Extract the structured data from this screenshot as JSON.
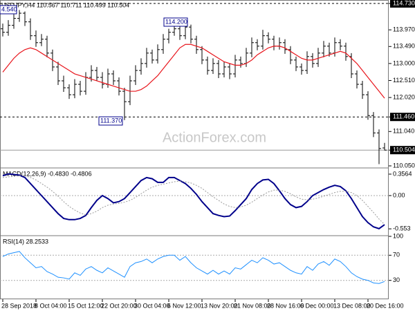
{
  "chart_data": [
    {
      "type": "ohlc",
      "title": "USDJPY,H4 110.567 110.711 110.499 110.504",
      "watermark": "ActionForex.com",
      "categories": [
        "28 Sep 2018",
        null,
        null,
        null,
        null,
        null,
        "8 Oct 04:00",
        null,
        null,
        null,
        null,
        null,
        "15 Oct 12:00",
        null,
        null,
        null,
        null,
        null,
        "22 Oct 20:00",
        null,
        null,
        null,
        null,
        null,
        "30 Oct 04:00",
        null,
        null,
        null,
        null,
        null,
        "6 Nov 12:00",
        null,
        null,
        null,
        null,
        null,
        "13 Nov 20:00",
        null,
        null,
        null,
        null,
        null,
        "21 Nov 08:00",
        null,
        null,
        null,
        null,
        null,
        "28 Nov 16:00",
        null,
        null,
        null,
        null,
        null,
        "6 Dec 00:00",
        null,
        null,
        null,
        null,
        null,
        "13 Dec 08:00",
        null,
        null,
        null,
        null,
        null,
        "20 Dec 16:00",
        null,
        null,
        null
      ],
      "open": [
        114.0,
        113.9,
        114.1,
        114.3,
        114.45,
        114.2,
        113.8,
        113.6,
        113.7,
        113.3,
        112.9,
        112.5,
        112.3,
        112.1,
        112.4,
        112.2,
        112.6,
        112.8,
        112.6,
        112.4,
        112.7,
        112.5,
        112.2,
        111.9,
        112.5,
        112.8,
        113.0,
        113.3,
        113.1,
        113.4,
        113.7,
        113.9,
        114.0,
        113.8,
        114.05,
        113.7,
        113.4,
        113.1,
        112.8,
        113.0,
        112.7,
        112.9,
        112.7,
        113.1,
        113.0,
        113.3,
        113.6,
        113.5,
        113.8,
        113.7,
        113.5,
        113.6,
        113.4,
        113.1,
        112.9,
        112.8,
        113.2,
        113.0,
        113.3,
        113.5,
        113.3,
        113.6,
        113.5,
        113.2,
        112.7,
        112.4,
        112.1,
        111.5,
        111.0,
        110.567
      ],
      "high": [
        114.15,
        114.25,
        114.42,
        114.54,
        114.5,
        114.3,
        113.95,
        113.85,
        113.8,
        113.4,
        113.05,
        112.65,
        112.4,
        112.55,
        112.5,
        112.75,
        112.95,
        112.9,
        112.75,
        112.85,
        112.8,
        112.6,
        112.3,
        112.65,
        112.95,
        113.15,
        113.45,
        113.4,
        113.55,
        113.85,
        114.0,
        114.2,
        114.1,
        114.15,
        114.12,
        113.8,
        113.5,
        113.2,
        113.15,
        113.1,
        113.05,
        113.0,
        113.25,
        113.2,
        113.45,
        113.75,
        113.7,
        113.97,
        113.9,
        113.8,
        113.75,
        113.7,
        113.5,
        113.2,
        113.0,
        113.35,
        113.3,
        113.45,
        113.65,
        113.6,
        113.75,
        113.7,
        113.6,
        113.3,
        112.8,
        112.5,
        112.2,
        111.6,
        111.1,
        110.711
      ],
      "low": [
        113.78,
        113.8,
        114.0,
        114.2,
        114.08,
        113.68,
        113.48,
        113.5,
        113.18,
        112.78,
        112.38,
        112.18,
        111.98,
        112.0,
        112.08,
        112.1,
        112.48,
        112.5,
        112.28,
        112.3,
        112.38,
        112.08,
        111.37,
        111.8,
        112.38,
        112.68,
        112.88,
        113.0,
        113.0,
        113.28,
        113.58,
        113.8,
        113.68,
        113.7,
        113.58,
        113.28,
        112.98,
        112.68,
        112.7,
        112.58,
        112.6,
        112.55,
        112.6,
        112.88,
        112.9,
        113.18,
        113.38,
        113.4,
        113.58,
        113.38,
        113.4,
        113.28,
        112.98,
        112.78,
        112.68,
        112.7,
        112.88,
        112.9,
        113.18,
        113.2,
        113.2,
        113.38,
        113.08,
        112.58,
        112.28,
        111.98,
        111.38,
        110.88,
        110.1,
        110.499
      ],
      "close": [
        113.9,
        114.1,
        114.3,
        114.45,
        114.2,
        113.8,
        113.6,
        113.7,
        113.3,
        112.9,
        112.5,
        112.3,
        112.1,
        112.4,
        112.2,
        112.6,
        112.8,
        112.6,
        112.4,
        112.7,
        112.5,
        112.2,
        111.9,
        112.5,
        112.8,
        113.0,
        113.3,
        113.1,
        113.4,
        113.7,
        113.9,
        114.0,
        113.8,
        114.05,
        113.7,
        113.4,
        113.1,
        112.8,
        113.0,
        112.7,
        112.9,
        112.7,
        113.1,
        113.0,
        113.3,
        113.6,
        113.5,
        113.8,
        113.7,
        113.5,
        113.6,
        113.4,
        113.1,
        112.9,
        112.8,
        113.2,
        113.0,
        113.3,
        113.5,
        113.3,
        113.6,
        113.5,
        113.2,
        112.7,
        112.4,
        112.1,
        111.5,
        111.0,
        110.55,
        110.504
      ],
      "color": "#000000",
      "ma": {
        "color": "#e8141b",
        "values": [
          112.75,
          112.95,
          113.15,
          113.3,
          113.4,
          113.45,
          113.4,
          113.3,
          113.2,
          113.1,
          113.0,
          112.9,
          112.8,
          112.7,
          112.65,
          112.6,
          112.55,
          112.5,
          112.45,
          112.4,
          112.35,
          112.3,
          112.25,
          112.2,
          112.2,
          112.25,
          112.35,
          112.5,
          112.65,
          112.85,
          113.05,
          113.25,
          113.45,
          113.55,
          113.55,
          113.5,
          113.45,
          113.35,
          113.25,
          113.15,
          113.05,
          113.0,
          112.95,
          112.95,
          113.0,
          113.1,
          113.25,
          113.35,
          113.45,
          113.5,
          113.5,
          113.45,
          113.35,
          113.25,
          113.15,
          113.1,
          113.1,
          113.15,
          113.2,
          113.25,
          113.3,
          113.35,
          113.3,
          113.15,
          113.0,
          112.8,
          112.6,
          112.4,
          112.2,
          112.0
        ]
      },
      "ylim": [
        110.01,
        114.83
      ],
      "yticks": [
        {
          "value": 114.73,
          "label": "114.730"
        },
        {
          "value": 113.97,
          "label": "113.970"
        },
        {
          "value": 113.49,
          "label": "113.490"
        },
        {
          "value": 113.0,
          "label": "113.000"
        },
        {
          "value": 112.51,
          "label": "112.510"
        },
        {
          "value": 112.02,
          "label": "112.020"
        },
        {
          "value": 111.46,
          "label": "111.460"
        },
        {
          "value": 111.04,
          "label": "111.040"
        },
        {
          "value": 110.504,
          "label": "110.504"
        },
        {
          "value": 110.05,
          "label": "110.050"
        }
      ],
      "levels": [
        114.73,
        111.46
      ],
      "annotations": [
        "4.540",
        "114.200",
        "111.370"
      ]
    },
    {
      "type": "line",
      "title": "MACD(12,26,9) -0.4830 -0.4806",
      "series": [
        {
          "color": "#00008b",
          "values": [
            0.33,
            0.36,
            0.35,
            0.34,
            0.3,
            0.2,
            0.1,
            0.0,
            -0.1,
            -0.2,
            -0.3,
            -0.38,
            -0.4,
            -0.4,
            -0.38,
            -0.33,
            -0.2,
            -0.08,
            0.0,
            -0.05,
            -0.12,
            -0.1,
            -0.05,
            0.05,
            0.15,
            0.25,
            0.3,
            0.28,
            0.22,
            0.22,
            0.3,
            0.3,
            0.25,
            0.2,
            0.12,
            0.02,
            -0.1,
            -0.2,
            -0.3,
            -0.33,
            -0.35,
            -0.34,
            -0.25,
            -0.15,
            -0.05,
            0.1,
            0.2,
            0.26,
            0.27,
            0.2,
            0.08,
            -0.05,
            -0.15,
            -0.2,
            -0.18,
            -0.1,
            0.0,
            0.05,
            0.1,
            0.14,
            0.17,
            0.15,
            0.08,
            -0.05,
            -0.2,
            -0.35,
            -0.45,
            -0.52,
            -0.55,
            -0.483
          ]
        },
        {
          "color": "#999999",
          "dashed": true,
          "values": [
            0.3,
            0.31,
            0.32,
            0.33,
            0.33,
            0.3,
            0.26,
            0.2,
            0.14,
            0.07,
            -0.01,
            -0.1,
            -0.18,
            -0.24,
            -0.29,
            -0.32,
            -0.3,
            -0.26,
            -0.2,
            -0.16,
            -0.14,
            -0.13,
            -0.11,
            -0.08,
            -0.03,
            0.03,
            0.09,
            0.14,
            0.17,
            0.19,
            0.21,
            0.23,
            0.24,
            0.23,
            0.21,
            0.17,
            0.12,
            0.05,
            -0.02,
            -0.08,
            -0.14,
            -0.18,
            -0.2,
            -0.19,
            -0.16,
            -0.11,
            -0.05,
            0.01,
            0.06,
            0.09,
            0.09,
            0.07,
            0.03,
            -0.02,
            -0.06,
            -0.07,
            -0.06,
            -0.04,
            -0.01,
            0.02,
            0.05,
            0.07,
            0.07,
            0.05,
            0.0,
            -0.08,
            -0.18,
            -0.28,
            -0.39,
            -0.4806
          ]
        }
      ],
      "ylim": [
        -0.655,
        0.448
      ],
      "yticks": [
        0.3564,
        {
          "value": 0,
          "label": "0.00"
        },
        -0.553
      ],
      "levels": [
        0
      ]
    },
    {
      "type": "line",
      "title": "RSI(14) 28.2533",
      "series": [
        {
          "color": "#1e90ff",
          "values": [
            68,
            72,
            74,
            76,
            66,
            58,
            50,
            52,
            44,
            40,
            35,
            34,
            32,
            42,
            38,
            48,
            52,
            46,
            42,
            50,
            45,
            40,
            35,
            52,
            58,
            60,
            64,
            58,
            64,
            68,
            70,
            70,
            62,
            68,
            58,
            50,
            45,
            40,
            46,
            40,
            45,
            40,
            50,
            48,
            55,
            62,
            58,
            66,
            62,
            56,
            58,
            52,
            46,
            42,
            40,
            52,
            46,
            56,
            60,
            54,
            64,
            60,
            52,
            42,
            36,
            32,
            30,
            26,
            25,
            28.2533
          ]
        }
      ],
      "ylim": [
        0,
        100
      ],
      "yticks": [
        100,
        70,
        30
      ],
      "levels": [
        70,
        30
      ]
    }
  ]
}
